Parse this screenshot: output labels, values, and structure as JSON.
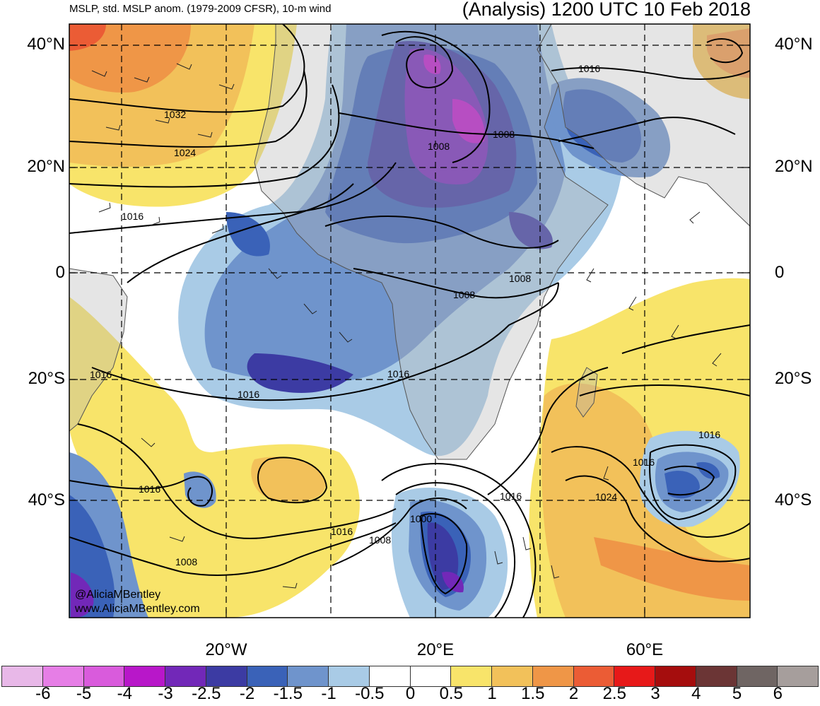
{
  "header": {
    "left": "MSLP, std. MSLP anom. (1979-2009 CFSR), 10-m wind",
    "right": "(Analysis) 1200 UTC 10 Feb 2018"
  },
  "axes": {
    "lat_labels": [
      "40°N",
      "20°N",
      "0",
      "20°S",
      "40°S"
    ],
    "lon_labels": [
      "20°W",
      "20°E",
      "60°E"
    ]
  },
  "watermark": [
    "@AliciaMBentley",
    "www.AliciaMBentley.com"
  ],
  "contour_labels": [
    "1032",
    "1024",
    "1016",
    "1016",
    "1008",
    "1008",
    "1008",
    "1008",
    "1016",
    "1016",
    "1016",
    "1016",
    "1000",
    "1008",
    "1008",
    "1016",
    "1024",
    "1016",
    "1016",
    "1016"
  ],
  "colorbar": {
    "ticks": [
      "-6",
      "-5",
      "-4",
      "-3",
      "-2.5",
      "-2",
      "-1.5",
      "-1",
      "-0.5",
      "0",
      "0.5",
      "1",
      "1.5",
      "2",
      "2.5",
      "3",
      "4",
      "5",
      "6"
    ],
    "colors": [
      "#e8b8e8",
      "#e67ee6",
      "#d95bdc",
      "#b817c9",
      "#7228b8",
      "#3c3ba3",
      "#3a62b8",
      "#6f94cc",
      "#a9cbe6",
      "#ffffff",
      "#ffffff",
      "#f8e46a",
      "#f2c15a",
      "#ef9647",
      "#eb5c35",
      "#e71919",
      "#a50d0d",
      "#6b3535",
      "#6f6563",
      "#a69e9c"
    ]
  }
}
